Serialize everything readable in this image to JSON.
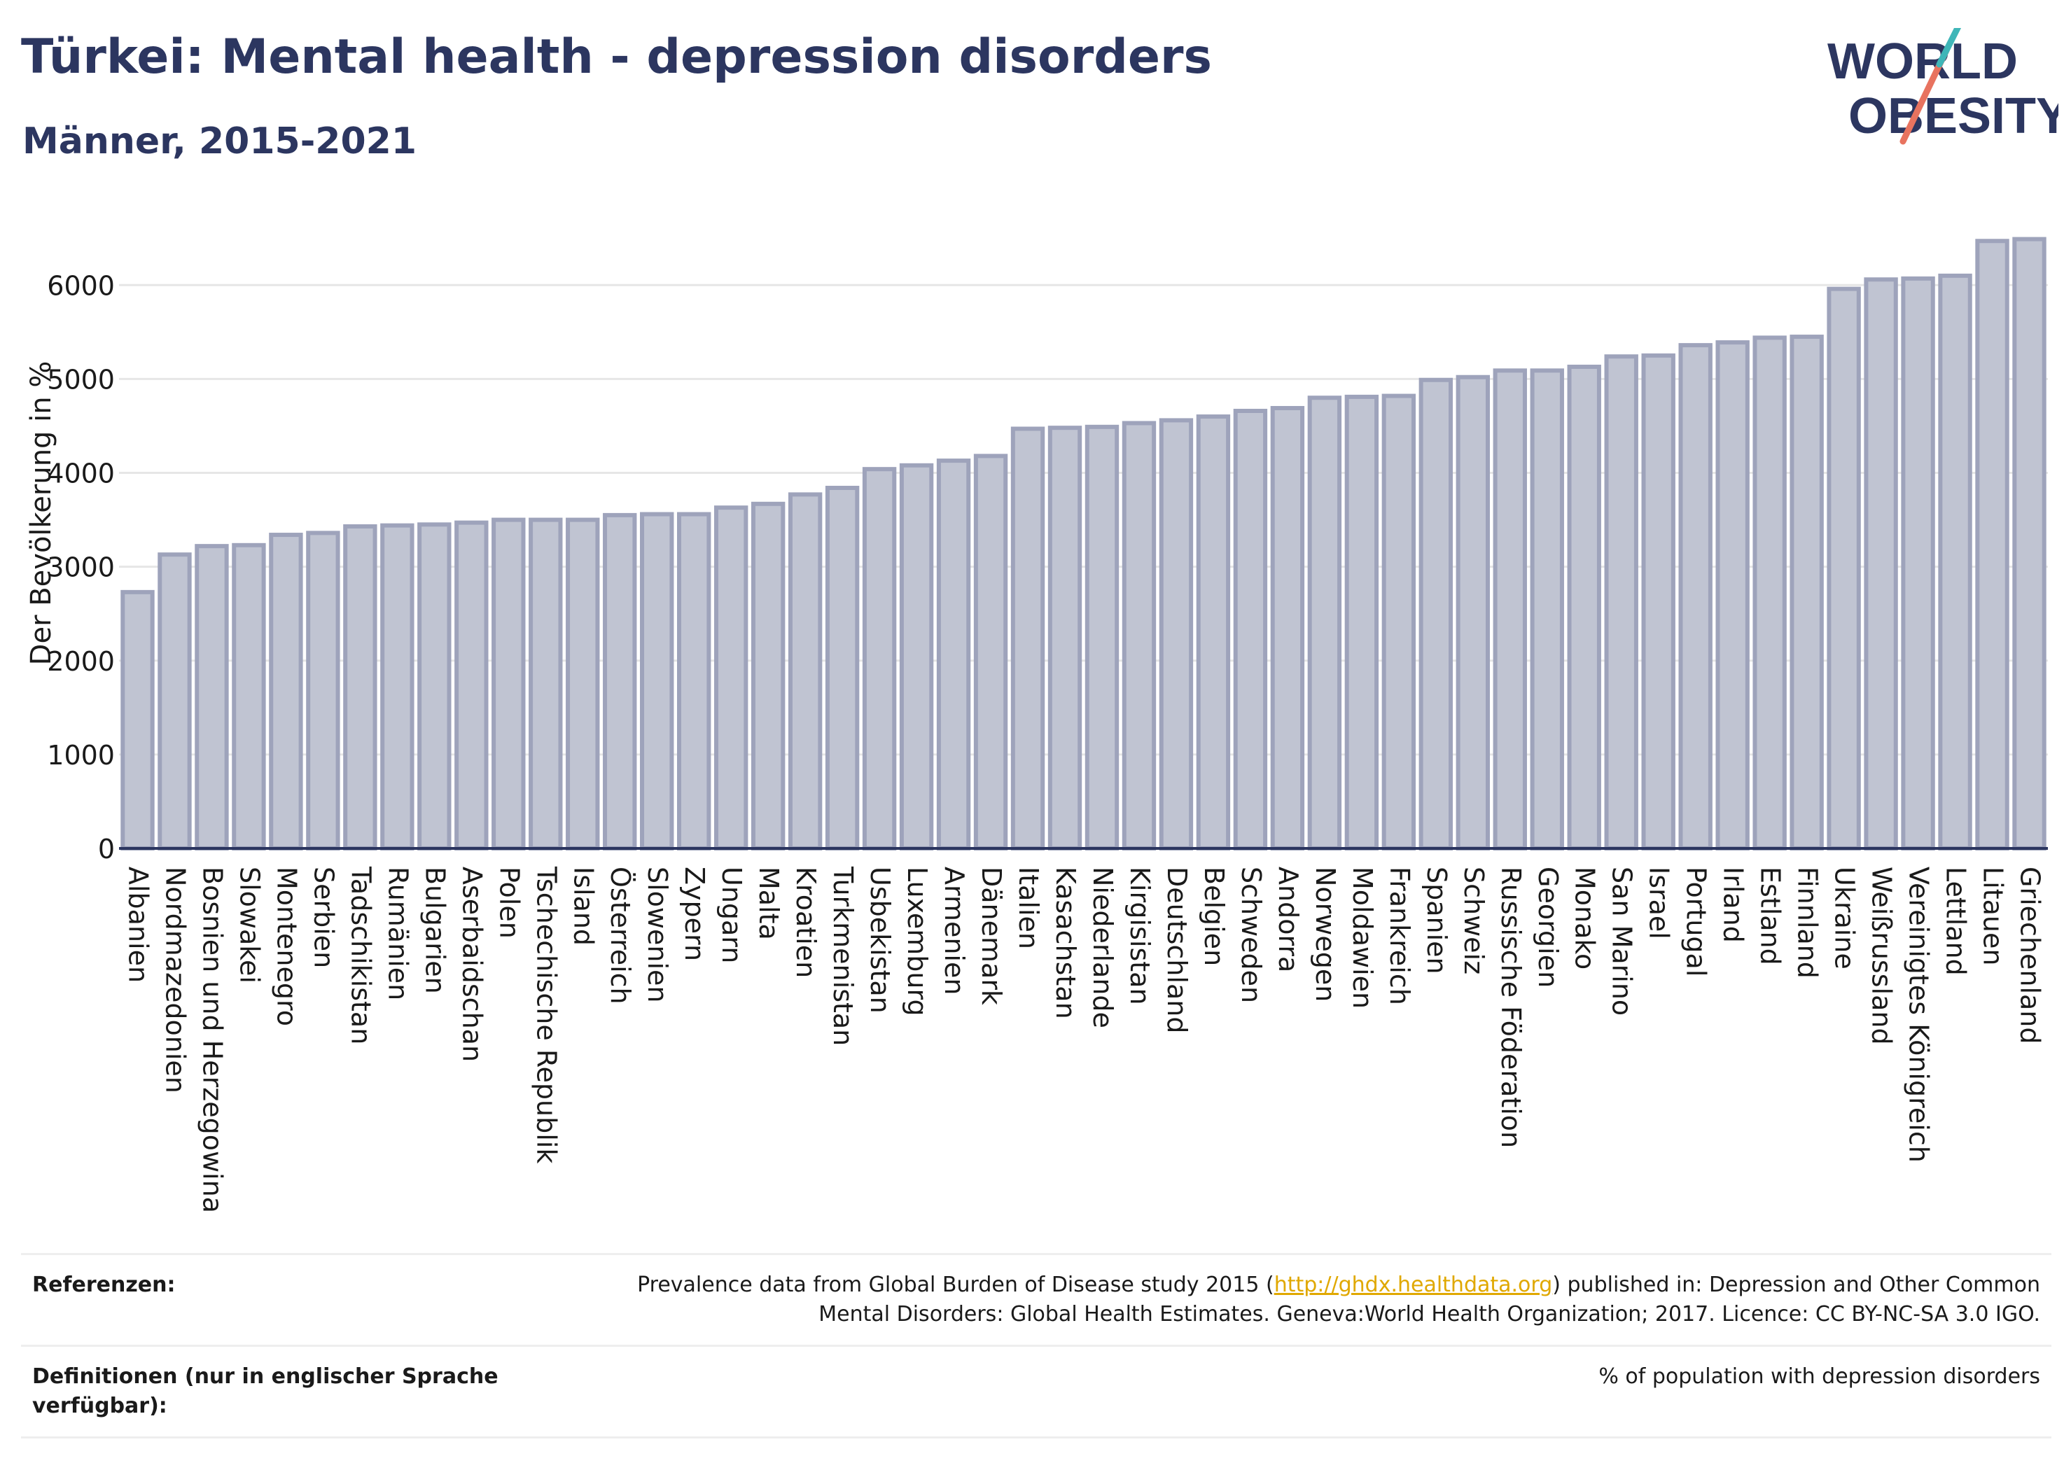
{
  "title": "Türkei: Mental health - depression disorders",
  "subtitle": "Männer, 2015-2021",
  "logo": {
    "line1": "WORLD",
    "line2": "OBESITY"
  },
  "colors": {
    "bar_fill": "#c0c4d2",
    "bar_stroke": "#9ea3bb",
    "title": "#2c3660",
    "link": "#e0a800",
    "logo_teal": "#3fb6b8",
    "logo_red": "#e8735f"
  },
  "chart_data": {
    "type": "bar",
    "ylabel": "Der Bevölkerung in %",
    "xlabel": "",
    "ylim": [
      0,
      6800
    ],
    "yticks": [
      0,
      1000,
      2000,
      3000,
      4000,
      5000,
      6000
    ],
    "grid": true,
    "categories": [
      "Albanien",
      "Nordmazedonien",
      "Bosnien und Herzegowina",
      "Slowakei",
      "Montenegro",
      "Serbien",
      "Tadschikistan",
      "Rumänien",
      "Bulgarien",
      "Aserbaidschan",
      "Polen",
      "Tschechische Republik",
      "Island",
      "Österreich",
      "Slowenien",
      "Zypern",
      "Ungarn",
      "Malta",
      "Kroatien",
      "Turkmenistan",
      "Usbekistan",
      "Luxemburg",
      "Armenien",
      "Dänemark",
      "Italien",
      "Kasachstan",
      "Niederlande",
      "Kirgisistan",
      "Deutschland",
      "Belgien",
      "Schweden",
      "Andorra",
      "Norwegen",
      "Moldawien",
      "Frankreich",
      "Spanien",
      "Schweiz",
      "Russische Föderation",
      "Georgien",
      "Monako",
      "San Marino",
      "Israel",
      "Portugal",
      "Irland",
      "Estland",
      "Finnland",
      "Ukraine",
      "Weißrussland",
      "Vereinigtes Königreich",
      "Lettland",
      "Litauen",
      "Griechenland"
    ],
    "values": [
      2730,
      3130,
      3220,
      3230,
      3340,
      3360,
      3430,
      3440,
      3450,
      3470,
      3500,
      3500,
      3500,
      3550,
      3560,
      3560,
      3630,
      3670,
      3770,
      3840,
      4040,
      4080,
      4130,
      4180,
      4470,
      4480,
      4490,
      4530,
      4560,
      4600,
      4660,
      4690,
      4800,
      4810,
      4820,
      4990,
      5020,
      5090,
      5090,
      5130,
      5240,
      5250,
      5360,
      5390,
      5440,
      5450,
      5960,
      6060,
      6070,
      6100,
      6470,
      6490
    ]
  },
  "references": {
    "ref_label": "Referenzen:",
    "ref_text_before": "Prevalence data from Global Burden of Disease study 2015 (",
    "ref_link": "http://ghdx.healthdata.org",
    "ref_text_after": ") published in: Depression and Other Common",
    "ref_text_line2": "Mental Disorders: Global Health Estimates. Geneva:World Health Organization; 2017. Licence: CC BY-NC-SA 3.0 IGO.",
    "def_label": "Definitionen (nur in englischer Sprache verfügbar):",
    "def_text": "% of population with depression disorders"
  }
}
